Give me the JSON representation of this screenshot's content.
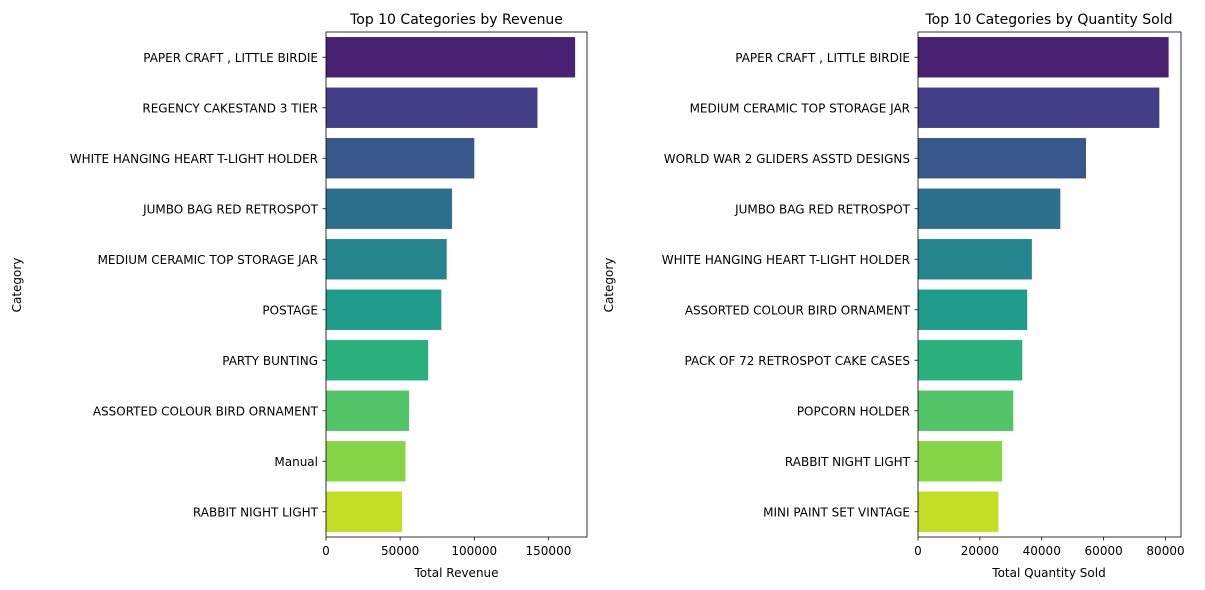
{
  "chart_data": [
    {
      "type": "bar",
      "orientation": "horizontal",
      "title": "Top 10 Categories by Revenue",
      "xlabel": "Total Revenue",
      "ylabel": "Category",
      "xlim": [
        0,
        176000
      ],
      "xticks": [
        0,
        50000,
        100000,
        150000
      ],
      "grid": false,
      "legend": "none",
      "categories": [
        "PAPER CRAFT , LITTLE BIRDIE",
        "REGENCY CAKESTAND 3 TIER",
        "WHITE HANGING HEART T-LIGHT HOLDER",
        "JUMBO BAG RED RETROSPOT",
        "MEDIUM CERAMIC TOP STORAGE JAR",
        "POSTAGE",
        "PARTY BUNTING",
        "ASSORTED COLOUR BIRD ORNAMENT",
        "Manual",
        "RABBIT NIGHT LIGHT"
      ],
      "values": [
        168000,
        142600,
        100000,
        85000,
        81400,
        77800,
        68900,
        56000,
        53600,
        51300
      ]
    },
    {
      "type": "bar",
      "orientation": "horizontal",
      "title": "Top 10 Categories by Quantity Sold",
      "xlabel": "Total Quantity Sold",
      "ylabel": "Category",
      "xlim": [
        0,
        85000
      ],
      "xticks": [
        0,
        20000,
        40000,
        60000,
        80000
      ],
      "grid": false,
      "legend": "none",
      "categories": [
        "PAPER CRAFT , LITTLE BIRDIE",
        "MEDIUM CERAMIC TOP STORAGE JAR",
        "WORLD WAR 2 GLIDERS ASSTD DESIGNS",
        "JUMBO BAG RED RETROSPOT",
        "WHITE HANGING HEART T-LIGHT HOLDER",
        "ASSORTED COLOUR BIRD ORNAMENT",
        "PACK OF 72 RETROSPOT CAKE CASES",
        "POPCORN HOLDER",
        "RABBIT NIGHT LIGHT",
        "MINI PAINT SET VINTAGE "
      ],
      "values": [
        81000,
        78000,
        54300,
        46000,
        36800,
        35300,
        33700,
        30800,
        27200,
        26000
      ]
    }
  ],
  "palette": [
    "#482173",
    "#433e85",
    "#38588c",
    "#2d708e",
    "#25858e",
    "#1e9b8a",
    "#2ab07f",
    "#52c569",
    "#86d549",
    "#c2df23"
  ]
}
